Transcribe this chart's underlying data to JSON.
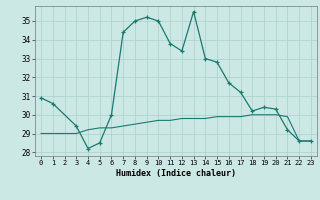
{
  "xlabel": "Humidex (Indice chaleur)",
  "line1_x": [
    0,
    1,
    3,
    4,
    5,
    6,
    7,
    8,
    9,
    10,
    11,
    12,
    13,
    14,
    15,
    16,
    17,
    18,
    19,
    20,
    21,
    22,
    23
  ],
  "line1_y": [
    30.9,
    30.6,
    29.4,
    28.2,
    28.5,
    30.0,
    34.4,
    35.0,
    35.2,
    35.0,
    33.8,
    33.4,
    35.5,
    33.0,
    32.8,
    31.7,
    31.2,
    30.2,
    30.4,
    30.3,
    29.2,
    28.6,
    28.6
  ],
  "line2_x": [
    0,
    1,
    3,
    4,
    5,
    6,
    7,
    8,
    9,
    10,
    11,
    12,
    13,
    14,
    15,
    16,
    17,
    18,
    19,
    20,
    21,
    22,
    23
  ],
  "line2_y": [
    29.0,
    29.0,
    29.0,
    29.2,
    29.3,
    29.3,
    29.4,
    29.5,
    29.6,
    29.7,
    29.7,
    29.8,
    29.8,
    29.8,
    29.9,
    29.9,
    29.9,
    30.0,
    30.0,
    30.0,
    29.9,
    28.6,
    28.6
  ],
  "color": "#1a7a6e",
  "bg_color": "#cce8e4",
  "grid_color": "#aad0cc",
  "ylim": [
    27.8,
    35.8
  ],
  "yticks": [
    28,
    29,
    30,
    31,
    32,
    33,
    34,
    35
  ],
  "xticks": [
    0,
    1,
    2,
    3,
    4,
    5,
    6,
    7,
    8,
    9,
    10,
    11,
    12,
    13,
    14,
    15,
    16,
    17,
    18,
    19,
    20,
    21,
    22,
    23
  ],
  "xlim": [
    -0.5,
    23.5
  ]
}
